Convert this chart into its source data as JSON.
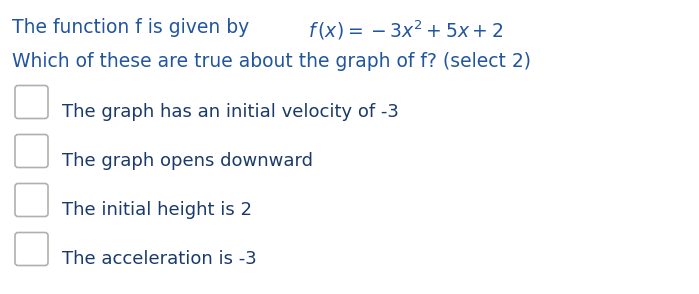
{
  "background_color": "#ffffff",
  "header_color": "#2155a0",
  "option_color": "#1a3a6b",
  "font_size_header": 13.5,
  "font_size_options": 13,
  "line1_plain": "The function f is given by ",
  "line1_math": "$f\\,(x) = -3x^2 + 5x + 2$",
  "line2": "Which of these are true about the graph of f? (select 2)",
  "options": [
    "The graph has an initial velocity of -3",
    "The graph opens downward",
    "The initial height is 2",
    "The acceleration is -3"
  ],
  "checkbox_color": "#b0b0b0",
  "checkbox_linewidth": 1.2
}
